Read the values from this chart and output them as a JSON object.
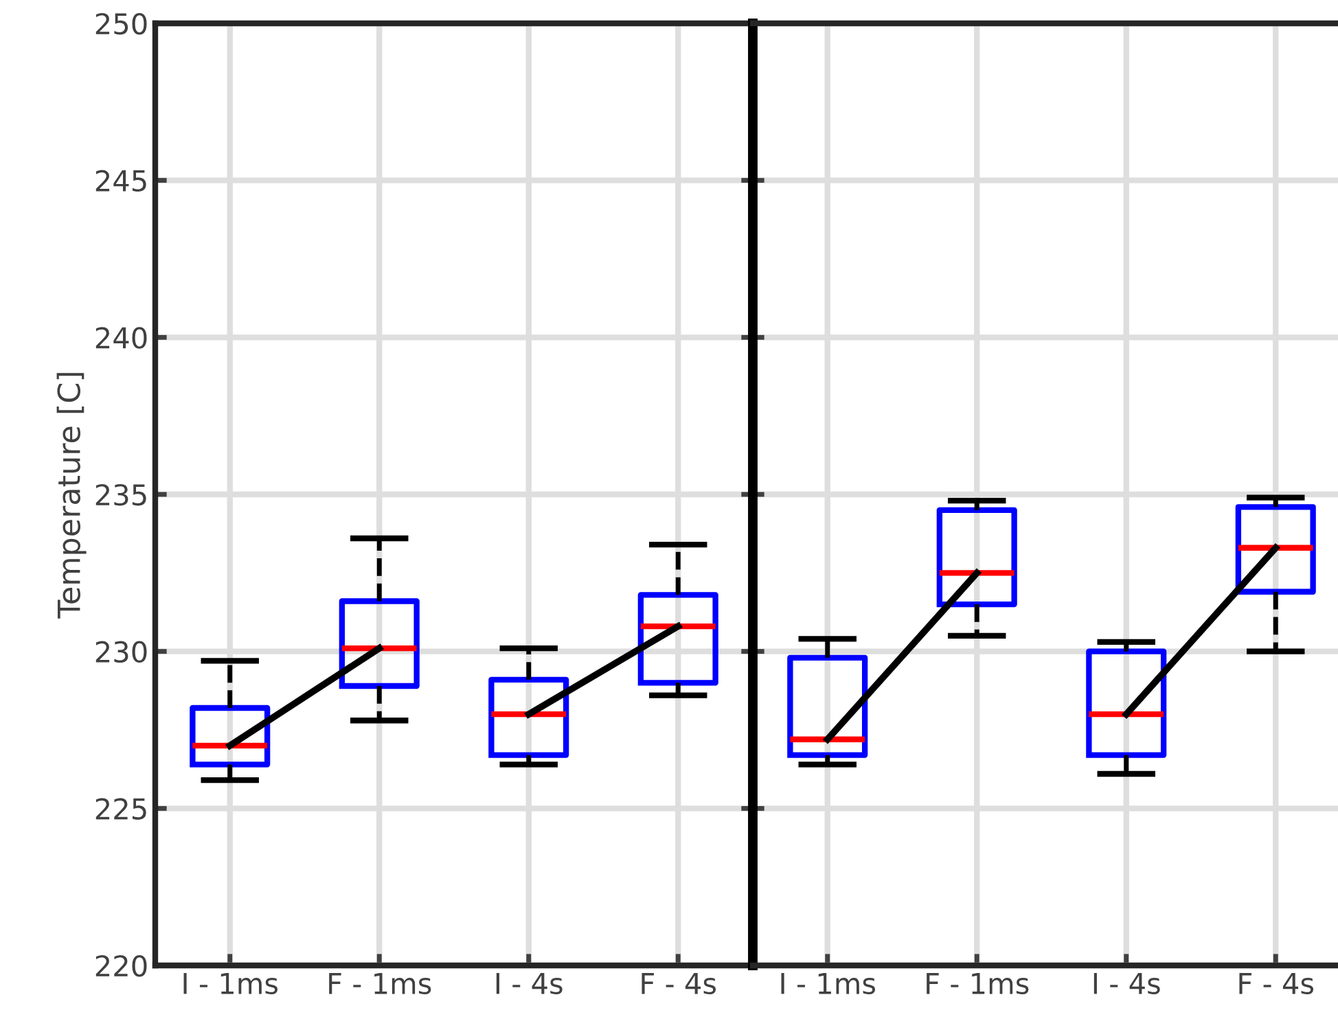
{
  "chart_data": [
    {
      "type": "box",
      "ylabel": "Temperature [C]",
      "categories": [
        "I - 1ms",
        "F - 1ms",
        "I - 4s",
        "F - 4s"
      ],
      "ylim": [
        220,
        250
      ],
      "yticks": [
        220,
        225,
        230,
        235,
        240,
        245,
        250
      ],
      "grid": true,
      "series": [
        {
          "color": "#0000ff",
          "boxes": [
            {
              "low": 225.9,
              "q1": 226.4,
              "median": 227.0,
              "q3": 228.2,
              "high": 229.7
            },
            {
              "low": 227.8,
              "q1": 228.9,
              "median": 230.1,
              "q3": 231.6,
              "high": 233.6
            },
            {
              "low": 226.4,
              "q1": 226.7,
              "median": 228.0,
              "q3": 229.1,
              "high": 230.1
            },
            {
              "low": 228.6,
              "q1": 229.0,
              "median": 230.8,
              "q3": 231.8,
              "high": 233.4
            }
          ]
        },
        {
          "type": "line",
          "color": "#000000",
          "values": [
            227.0,
            230.1,
            null,
            null
          ]
        },
        {
          "type": "line",
          "color": "#000000",
          "values": [
            null,
            null,
            228.0,
            230.8
          ]
        }
      ]
    },
    {
      "type": "box",
      "categories": [
        "I - 1ms",
        "F - 1ms",
        "I - 4s",
        "F - 4s"
      ],
      "ylim": [
        220,
        250
      ],
      "yticks": [
        220,
        225,
        230,
        235,
        240,
        245,
        250
      ],
      "grid": true,
      "tick_labels": "x",
      "series": [
        {
          "color": "#0000ff",
          "boxes": [
            {
              "low": 226.4,
              "q1": 226.7,
              "median": 227.2,
              "q3": 229.8,
              "high": 230.4
            },
            {
              "low": 230.5,
              "q1": 231.5,
              "median": 232.5,
              "q3": 234.5,
              "high": 234.8
            },
            {
              "low": 226.1,
              "q1": 226.7,
              "median": 228.0,
              "q3": 230.0,
              "high": 230.3
            },
            {
              "low": 230.0,
              "q1": 231.9,
              "median": 233.3,
              "q3": 234.6,
              "high": 234.9
            }
          ]
        },
        {
          "type": "line",
          "color": "#000000",
          "values": [
            227.2,
            232.5,
            null,
            null
          ]
        },
        {
          "type": "line",
          "color": "#000000",
          "values": [
            null,
            null,
            228.0,
            233.3
          ]
        }
      ]
    }
  ]
}
